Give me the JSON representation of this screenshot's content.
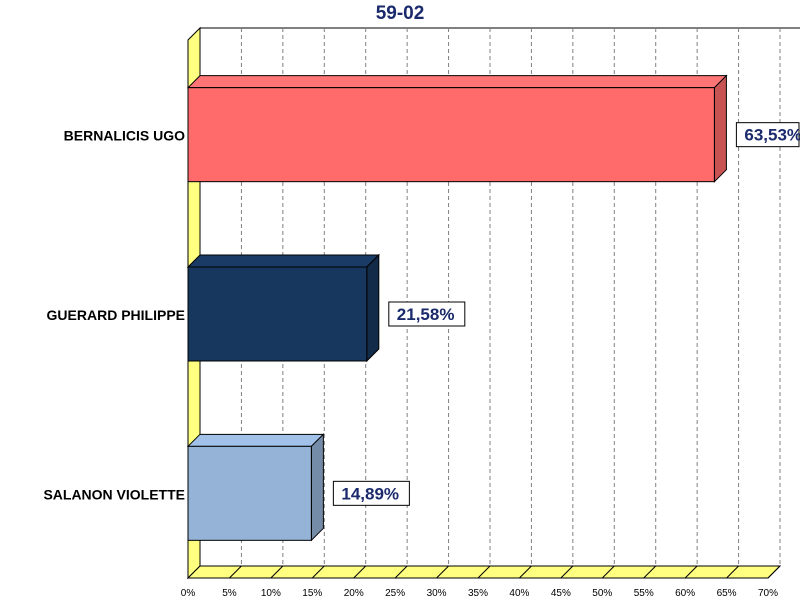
{
  "chart_data": {
    "type": "bar",
    "orientation": "horizontal",
    "title": "59-02",
    "categories": [
      "BERNALICIS UGO",
      "GUERARD PHILIPPE",
      "SALANON VIOLETTE"
    ],
    "values": [
      63.53,
      21.58,
      14.89
    ],
    "value_labels": [
      "63,53%",
      "21,58%",
      "14,89%"
    ],
    "bar_colors": [
      "#ff6b6b",
      "#17375e",
      "#95b3d7"
    ],
    "xlim": [
      0,
      70
    ],
    "x_ticks": [
      "0%",
      "5%",
      "10%",
      "15%",
      "20%",
      "25%",
      "30%",
      "35%",
      "40%",
      "45%",
      "50%",
      "55%",
      "60%",
      "65%",
      "70%"
    ],
    "grid": true,
    "wall_color": "#ffff80",
    "label_color": "#1a2a6c"
  }
}
